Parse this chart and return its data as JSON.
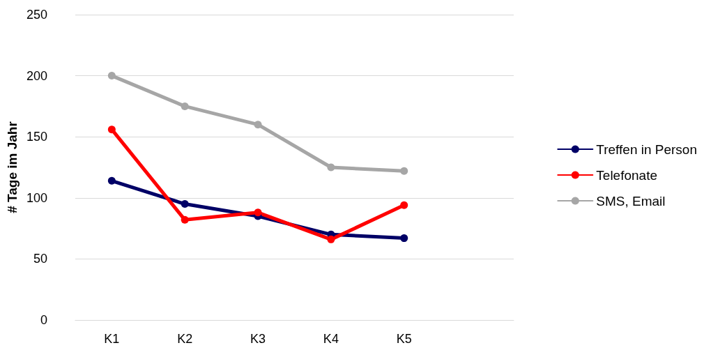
{
  "chart_data": {
    "type": "line",
    "ylabel": "# Tage im Jahr",
    "categories": [
      "K1",
      "K2",
      "K3",
      "K4",
      "K5",
      null
    ],
    "series": [
      {
        "name": "Treffen in Person",
        "color": "#000066",
        "values": [
          114,
          95,
          85,
          70,
          67,
          null
        ]
      },
      {
        "name": "Telefonate",
        "color": "#ff0000",
        "values": [
          156,
          82,
          88,
          66,
          94,
          null
        ]
      },
      {
        "name": "SMS, Email",
        "color": "#a6a6a6",
        "values": [
          200,
          175,
          160,
          125,
          122,
          null
        ]
      }
    ],
    "ylim": [
      0,
      250
    ],
    "yticks": [
      0,
      50,
      100,
      150,
      200,
      250
    ],
    "grid": "y",
    "legend": "right",
    "marker": "circle",
    "line_style": "solid"
  }
}
